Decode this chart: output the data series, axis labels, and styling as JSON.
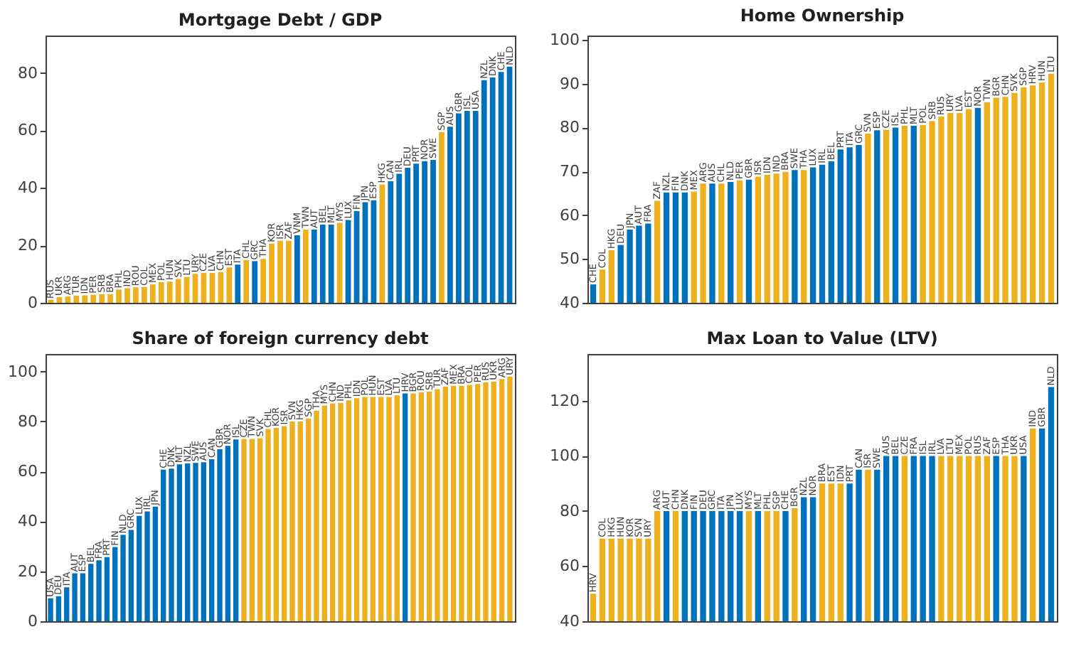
{
  "chart_data": [
    {
      "type": "bar",
      "title": "Mortgage Debt / GDP",
      "ylim": [
        0,
        93
      ],
      "yticks": [
        0,
        20,
        40,
        60,
        80
      ],
      "grid": false,
      "tick_labels": "y",
      "categories": [
        "RUS",
        "UKR",
        "ARG",
        "TUR",
        "IDN",
        "PER",
        "SRB",
        "BRA",
        "PHL",
        "IND",
        "ROU",
        "COL",
        "MEX",
        "POL",
        "HUN",
        "SVK",
        "LTU",
        "URY",
        "CZE",
        "LVA",
        "CHN",
        "EST",
        "ITA",
        "CHL",
        "GRC",
        "THA",
        "KOR",
        "ISR",
        "ZAF",
        "VNM",
        "TWN",
        "AUT",
        "BEL",
        "MLT",
        "MYS",
        "LUX",
        "FIN",
        "JPN",
        "ESP",
        "HKG",
        "CAN",
        "IRL",
        "DEU",
        "PRT",
        "NOR",
        "SWE",
        "SGP",
        "AUS",
        "GBR",
        "ISL",
        "USA",
        "NZL",
        "DNK",
        "CHE",
        "NLD"
      ],
      "values": [
        1.0,
        2.0,
        2.2,
        2.5,
        2.6,
        2.8,
        3.0,
        3.0,
        4.6,
        5.1,
        5.4,
        5.5,
        6.4,
        7.2,
        7.4,
        8.3,
        9.0,
        10.1,
        10.4,
        10.4,
        10.7,
        12.3,
        13.3,
        14.9,
        14.5,
        15.3,
        20.6,
        21.6,
        21.6,
        23.5,
        25.5,
        25.5,
        27.2,
        27.2,
        27.8,
        28.8,
        31.9,
        35.0,
        35.7,
        41.2,
        42.3,
        44.9,
        47.0,
        48.4,
        49.3,
        49.7,
        59.4,
        61.3,
        65.9,
        66.8,
        66.8,
        77.5,
        78.4,
        80.3,
        82.2
      ],
      "colors": [
        "#edb120",
        "#edb120",
        "#edb120",
        "#edb120",
        "#edb120",
        "#edb120",
        "#edb120",
        "#edb120",
        "#edb120",
        "#edb120",
        "#edb120",
        "#edb120",
        "#edb120",
        "#edb120",
        "#edb120",
        "#edb120",
        "#edb120",
        "#edb120",
        "#edb120",
        "#edb120",
        "#edb120",
        "#edb120",
        "#0072bd",
        "#edb120",
        "#0072bd",
        "#edb120",
        "#edb120",
        "#edb120",
        "#edb120",
        "#0072bd",
        "#edb120",
        "#0072bd",
        "#0072bd",
        "#0072bd",
        "#edb120",
        "#0072bd",
        "#0072bd",
        "#0072bd",
        "#0072bd",
        "#edb120",
        "#0072bd",
        "#0072bd",
        "#0072bd",
        "#0072bd",
        "#0072bd",
        "#0072bd",
        "#edb120",
        "#0072bd",
        "#0072bd",
        "#0072bd",
        "#0072bd",
        "#0072bd",
        "#0072bd",
        "#0072bd",
        "#0072bd"
      ]
    },
    {
      "type": "bar",
      "title": "Home Ownership",
      "ylim": [
        40,
        101
      ],
      "yticks": [
        40,
        50,
        60,
        70,
        80,
        90,
        100
      ],
      "grid": false,
      "tick_labels": "y",
      "categories": [
        "CHE",
        "COL",
        "HKG",
        "DEU",
        "JPN",
        "AUT",
        "FRA",
        "ZAF",
        "NZL",
        "FIN",
        "DNK",
        "MEX",
        "ARG",
        "AUS",
        "CHL",
        "NLD",
        "PER",
        "GBR",
        "ISR",
        "IDN",
        "IND",
        "BRA",
        "SWE",
        "THA",
        "LUX",
        "IRL",
        "BEL",
        "PRT",
        "ITA",
        "GRC",
        "SVN",
        "ESP",
        "CZE",
        "ISL",
        "PHL",
        "MLT",
        "POL",
        "SRB",
        "RUS",
        "URY",
        "LVA",
        "EST",
        "NOR",
        "TWN",
        "BGR",
        "CHN",
        "SVK",
        "SGP",
        "HRV",
        "HUN",
        "LTU"
      ],
      "values": [
        44.2,
        47.6,
        52.0,
        53.2,
        56.7,
        57.6,
        58.1,
        63.3,
        65.2,
        65.2,
        65.2,
        65.4,
        67.2,
        67.2,
        67.2,
        67.6,
        67.9,
        68.1,
        68.8,
        69.2,
        69.5,
        69.9,
        70.3,
        70.3,
        70.9,
        71.5,
        72.3,
        75.0,
        75.5,
        76.0,
        78.6,
        79.4,
        79.5,
        80.0,
        80.4,
        80.4,
        80.6,
        81.5,
        82.5,
        83.3,
        83.3,
        84.2,
        84.5,
        85.8,
        86.8,
        87.0,
        87.9,
        89.2,
        89.6,
        90.3,
        92.3
      ],
      "colors": [
        "#0072bd",
        "#edb120",
        "#edb120",
        "#0072bd",
        "#0072bd",
        "#0072bd",
        "#0072bd",
        "#edb120",
        "#0072bd",
        "#0072bd",
        "#0072bd",
        "#edb120",
        "#edb120",
        "#0072bd",
        "#edb120",
        "#0072bd",
        "#edb120",
        "#0072bd",
        "#edb120",
        "#edb120",
        "#edb120",
        "#edb120",
        "#0072bd",
        "#edb120",
        "#0072bd",
        "#0072bd",
        "#0072bd",
        "#0072bd",
        "#0072bd",
        "#0072bd",
        "#edb120",
        "#0072bd",
        "#edb120",
        "#0072bd",
        "#edb120",
        "#0072bd",
        "#edb120",
        "#edb120",
        "#edb120",
        "#edb120",
        "#edb120",
        "#edb120",
        "#0072bd",
        "#edb120",
        "#edb120",
        "#edb120",
        "#edb120",
        "#edb120",
        "#edb120",
        "#edb120",
        "#edb120"
      ]
    },
    {
      "type": "bar",
      "title": "Share of foreign currency debt",
      "ylim": [
        0,
        107
      ],
      "yticks": [
        0,
        20,
        40,
        60,
        80,
        100
      ],
      "grid": false,
      "tick_labels": "y",
      "categories": [
        "USA",
        "DEU",
        "ITA",
        "AUT",
        "ESP",
        "BEL",
        "FRA",
        "PRT",
        "FIN",
        "NLD",
        "GRC",
        "LUX",
        "IRL",
        "JPN",
        "CHE",
        "DNK",
        "MLT",
        "NZL",
        "SWE",
        "AUS",
        "CAN",
        "GBR",
        "NOR",
        "ISL",
        "CZE",
        "TWN",
        "SVK",
        "CHL",
        "KOR",
        "ISR",
        "SVN",
        "HKG",
        "SGP",
        "THA",
        "MYS",
        "CHN",
        "IND",
        "PHL",
        "IDN",
        "POL",
        "HUN",
        "EST",
        "LVA",
        "LTU",
        "HRV",
        "BGR",
        "ROU",
        "SRB",
        "TUR",
        "ZAF",
        "MEX",
        "BRA",
        "COL",
        "PER",
        "RUS",
        "UKR",
        "ARG",
        "URY"
      ],
      "values": [
        9.2,
        10.0,
        13.6,
        19.2,
        19.2,
        23.0,
        24.4,
        25.7,
        29.7,
        34.6,
        36.6,
        42.2,
        44.0,
        45.9,
        60.7,
        61.1,
        62.8,
        63.2,
        63.4,
        63.7,
        64.9,
        68.9,
        70.2,
        72.8,
        73.0,
        73.0,
        73.3,
        77.0,
        77.4,
        78.1,
        80.0,
        80.0,
        81.2,
        84.3,
        86.4,
        87.2,
        87.4,
        88.4,
        89.3,
        89.8,
        89.8,
        89.8,
        89.8,
        90.5,
        91.2,
        91.2,
        91.6,
        91.9,
        92.9,
        93.9,
        94.3,
        94.3,
        94.6,
        95.0,
        95.7,
        96.0,
        97.0,
        98.0
      ],
      "colors": [
        "#0072bd",
        "#0072bd",
        "#0072bd",
        "#0072bd",
        "#0072bd",
        "#0072bd",
        "#0072bd",
        "#0072bd",
        "#0072bd",
        "#0072bd",
        "#0072bd",
        "#0072bd",
        "#0072bd",
        "#0072bd",
        "#0072bd",
        "#0072bd",
        "#0072bd",
        "#0072bd",
        "#0072bd",
        "#0072bd",
        "#0072bd",
        "#0072bd",
        "#0072bd",
        "#0072bd",
        "#edb120",
        "#edb120",
        "#edb120",
        "#edb120",
        "#edb120",
        "#edb120",
        "#edb120",
        "#edb120",
        "#edb120",
        "#edb120",
        "#edb120",
        "#edb120",
        "#edb120",
        "#edb120",
        "#edb120",
        "#edb120",
        "#edb120",
        "#edb120",
        "#edb120",
        "#edb120",
        "#0072bd",
        "#edb120",
        "#edb120",
        "#edb120",
        "#edb120",
        "#edb120",
        "#edb120",
        "#edb120",
        "#edb120",
        "#edb120",
        "#edb120",
        "#edb120",
        "#edb120",
        "#edb120"
      ]
    },
    {
      "type": "bar",
      "title": "Max Loan to Value (LTV)",
      "ylim": [
        40,
        137
      ],
      "yticks": [
        40,
        60,
        80,
        100,
        120
      ],
      "grid": false,
      "tick_labels": "y",
      "categories": [
        "HRV",
        "COL",
        "HKG",
        "HUN",
        "KOR",
        "SVN",
        "URY",
        "ARG",
        "AUT",
        "CHN",
        "DNK",
        "FIN",
        "DEU",
        "GRC",
        "ITA",
        "JPN",
        "LUX",
        "MYS",
        "MLT",
        "PHL",
        "SGP",
        "CHE",
        "BGR",
        "NZL",
        "NOR",
        "BRA",
        "EST",
        "IDN",
        "PRT",
        "CAN",
        "ISR",
        "SWE",
        "AUS",
        "BEL",
        "CZE",
        "FRA",
        "ISL",
        "IRL",
        "LVA",
        "LTU",
        "MEX",
        "POL",
        "RUS",
        "ZAF",
        "ESP",
        "THA",
        "UKR",
        "USA",
        "IND",
        "GBR",
        "NLD"
      ],
      "values": [
        50,
        70,
        70,
        70,
        70,
        70,
        70,
        80,
        80,
        80,
        80,
        80,
        80,
        80,
        80,
        80,
        80,
        80,
        80,
        80,
        80,
        80,
        81,
        85,
        85,
        90,
        90,
        90,
        90,
        95,
        95,
        95,
        100,
        100,
        100,
        100,
        100,
        100,
        100,
        100,
        100,
        100,
        100,
        100,
        100,
        100,
        100,
        100,
        110,
        110,
        125
      ],
      "colors": [
        "#edb120",
        "#edb120",
        "#edb120",
        "#edb120",
        "#edb120",
        "#edb120",
        "#edb120",
        "#edb120",
        "#0072bd",
        "#edb120",
        "#0072bd",
        "#0072bd",
        "#0072bd",
        "#0072bd",
        "#0072bd",
        "#0072bd",
        "#0072bd",
        "#edb120",
        "#0072bd",
        "#edb120",
        "#edb120",
        "#0072bd",
        "#edb120",
        "#0072bd",
        "#0072bd",
        "#edb120",
        "#edb120",
        "#edb120",
        "#0072bd",
        "#0072bd",
        "#edb120",
        "#0072bd",
        "#0072bd",
        "#0072bd",
        "#edb120",
        "#0072bd",
        "#0072bd",
        "#0072bd",
        "#edb120",
        "#edb120",
        "#edb120",
        "#edb120",
        "#edb120",
        "#edb120",
        "#0072bd",
        "#edb120",
        "#edb120",
        "#0072bd",
        "#edb120",
        "#0072bd",
        "#0072bd"
      ]
    }
  ]
}
